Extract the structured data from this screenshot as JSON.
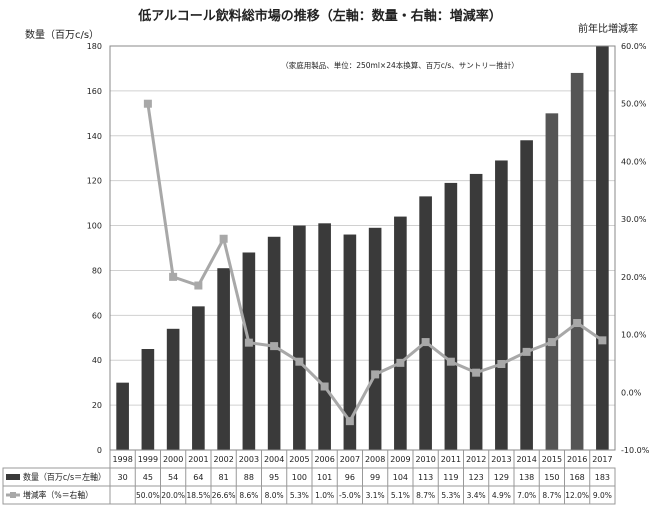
{
  "chart_data": {
    "type": "bar",
    "title": "低アルコール飲料総市場の推移（左軸：数量・右軸：増減率）",
    "subtitle": "（家庭用製品、単位：250ml×24本換算、百万c/s、サントリー推計）",
    "ylabel": "数量（百万c/s）",
    "y2label": "前年比増減率",
    "ylim": [
      0,
      180
    ],
    "yticks": [
      0,
      20,
      40,
      60,
      80,
      100,
      120,
      140,
      160,
      180
    ],
    "y2lim": [
      -10,
      60
    ],
    "y2ticks": [
      "-10.0%",
      "0.0%",
      "10.0%",
      "20.0%",
      "30.0%",
      "40.0%",
      "50.0%",
      "60.0%"
    ],
    "categories": [
      "1998",
      "1999",
      "2000",
      "2001",
      "2002",
      "2003",
      "2004",
      "2005",
      "2006",
      "2007",
      "2008",
      "2009",
      "2010",
      "2011",
      "2012",
      "2013",
      "2014",
      "2015",
      "2016",
      "2017"
    ],
    "series": [
      {
        "name": "数量（百万c/s＝左軸）",
        "type": "bar",
        "axis": "left",
        "color": "#3a3a3a",
        "values": [
          30,
          45,
          54,
          64,
          81,
          88,
          95,
          100,
          101,
          96,
          99,
          104,
          113,
          119,
          123,
          129,
          138,
          150,
          168,
          183
        ]
      },
      {
        "name": "増減率（%＝右軸）",
        "type": "line",
        "axis": "right",
        "color": "#a8a8a8",
        "values": [
          null,
          50.0,
          20.0,
          18.5,
          26.6,
          8.6,
          8.0,
          5.3,
          1.0,
          -5.0,
          3.1,
          5.1,
          8.7,
          5.3,
          3.4,
          4.9,
          7.0,
          8.7,
          12.0,
          9.0
        ],
        "labels": [
          "",
          "50.0%",
          "20.0%",
          "18.5%",
          "26.6%",
          "8.6%",
          "8.0%",
          "5.3%",
          "1.0%",
          "-5.0%",
          "3.1%",
          "5.1%",
          "8.7%",
          "5.3%",
          "3.4%",
          "4.9%",
          "7.0%",
          "8.7%",
          "12.0%",
          "9.0%"
        ]
      }
    ],
    "grid": "horizontal",
    "legend": "data-table-bottom"
  }
}
